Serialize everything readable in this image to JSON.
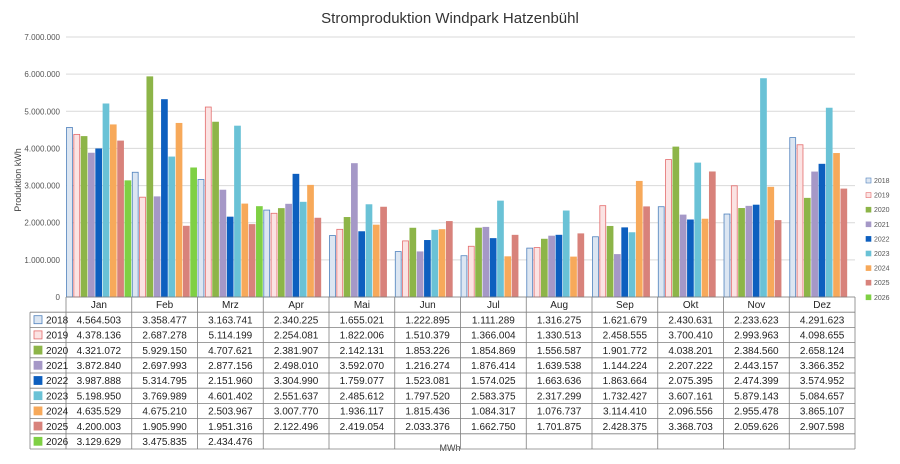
{
  "chart_data": {
    "type": "bar",
    "title": "Stromproduktion Windpark Hatzenbühl",
    "ylabel": "Produktion kWh",
    "xlabel": "MWh",
    "ylim": [
      0,
      7000000
    ],
    "yticks": [
      "0",
      "1.000.000",
      "2.000.000",
      "3.000.000",
      "4.000.000",
      "5.000.000",
      "6.000.000",
      "7.000.000"
    ],
    "ytick_values": [
      0,
      1000000,
      2000000,
      3000000,
      4000000,
      5000000,
      6000000,
      7000000
    ],
    "grid": true,
    "legend_position": "right",
    "categories": [
      "Jan",
      "Feb",
      "Mrz",
      "Apr",
      "Mai",
      "Jun",
      "Jul",
      "Aug",
      "Sep",
      "Okt",
      "Nov",
      "Dez"
    ],
    "series": [
      {
        "name": "2018",
        "color": "#dce6f2",
        "border": "#4f81bd",
        "values": [
          4564503,
          3358477,
          3163741,
          2340225,
          1655021,
          1222895,
          1111289,
          1316275,
          1621679,
          2430631,
          2233623,
          4291623
        ],
        "labels": [
          "4.564.503",
          "3.358.477",
          "3.163.741",
          "2.340.225",
          "1.655.021",
          "1.222.895",
          "1.111.289",
          "1.316.275",
          "1.621.679",
          "2.430.631",
          "2.233.623",
          "4.291.623"
        ]
      },
      {
        "name": "2019",
        "color": "#fbe3e3",
        "border": "#e46c6c",
        "values": [
          4378136,
          2687278,
          5114199,
          2254081,
          1822006,
          1510379,
          1366004,
          1330513,
          2458555,
          3700410,
          2993963,
          4098655
        ],
        "labels": [
          "4.378.136",
          "2.687.278",
          "5.114.199",
          "2.254.081",
          "1.822.006",
          "1.510.379",
          "1.366.004",
          "1.330.513",
          "2.458.555",
          "3.700.410",
          "2.993.963",
          "4.098.655"
        ]
      },
      {
        "name": "2020",
        "color": "#8db548",
        "border": "#8db548",
        "values": [
          4321072,
          5929150,
          4707621,
          2381907,
          2142131,
          1853226,
          1854869,
          1556587,
          1901772,
          4038201,
          2384560,
          2658124
        ],
        "labels": [
          "4.321.072",
          "5.929.150",
          "4.707.621",
          "2.381.907",
          "2.142.131",
          "1.853.226",
          "1.854.869",
          "1.556.587",
          "1.901.772",
          "4.038.201",
          "2.384.560",
          "2.658.124"
        ]
      },
      {
        "name": "2021",
        "color": "#a598c7",
        "border": "#a598c7",
        "values": [
          3872840,
          2697993,
          2877156,
          2498010,
          3592070,
          1216274,
          1876414,
          1639538,
          1144224,
          2207222,
          2443157,
          3366352
        ],
        "labels": [
          "3.872.840",
          "2.697.993",
          "2.877.156",
          "2.498.010",
          "3.592.070",
          "1.216.274",
          "1.876.414",
          "1.639.538",
          "1.144.224",
          "2.207.222",
          "2.443.157",
          "3.366.352"
        ]
      },
      {
        "name": "2022",
        "color": "#0d5fbf",
        "border": "#0d5fbf",
        "values": [
          3987888,
          5314795,
          2151960,
          3304990,
          1759077,
          1523081,
          1574025,
          1663636,
          1863664,
          2075395,
          2474399,
          3574952
        ],
        "labels": [
          "3.987.888",
          "5.314.795",
          "2.151.960",
          "3.304.990",
          "1.759.077",
          "1.523.081",
          "1.574.025",
          "1.663.636",
          "1.863.664",
          "2.075.395",
          "2.474.399",
          "3.574.952"
        ]
      },
      {
        "name": "2023",
        "color": "#6ac2d6",
        "border": "#6ac2d6",
        "values": [
          5198950,
          3769989,
          4601402,
          2551637,
          2485612,
          1797520,
          2583375,
          2317299,
          1732427,
          3607161,
          5879143,
          5084657
        ],
        "labels": [
          "5.198.950",
          "3.769.989",
          "4.601.402",
          "2.551.637",
          "2.485.612",
          "1.797.520",
          "2.583.375",
          "2.317.299",
          "1.732.427",
          "3.607.161",
          "5.879.143",
          "5.084.657"
        ]
      },
      {
        "name": "2024",
        "color": "#f7a95a",
        "border": "#f7a95a",
        "values": [
          4635529,
          4675210,
          2503967,
          3007770,
          1936117,
          1815436,
          1084317,
          1076737,
          3114410,
          2096556,
          2955478,
          3865107
        ],
        "labels": [
          "4.635.529",
          "4.675.210",
          "2.503.967",
          "3.007.770",
          "1.936.117",
          "1.815.436",
          "1.084.317",
          "1.076.737",
          "3.114.410",
          "2.096.556",
          "2.955.478",
          "3.865.107"
        ]
      },
      {
        "name": "2025",
        "color": "#d8827b",
        "border": "#d8827b",
        "values": [
          4200003,
          1905990,
          1951316,
          2122496,
          2419054,
          2033376,
          1662750,
          1701875,
          2428375,
          3368703,
          2059626,
          2907598
        ],
        "labels": [
          "4.200.003",
          "1.905.990",
          "1.951.316",
          "2.122.496",
          "2.419.054",
          "2.033.376",
          "1.662.750",
          "1.701.875",
          "2.428.375",
          "3.368.703",
          "2.059.626",
          "2.907.598"
        ]
      },
      {
        "name": "2026",
        "color": "#7fd044",
        "border": "#7fd044",
        "values": [
          3129629,
          3475835,
          2434476,
          null,
          null,
          null,
          null,
          null,
          null,
          null,
          null,
          null
        ],
        "labels": [
          "3.129.629",
          "3.475.835",
          "2.434.476",
          "",
          "",
          "",
          "",
          "",
          "",
          "",
          "",
          ""
        ]
      }
    ]
  }
}
